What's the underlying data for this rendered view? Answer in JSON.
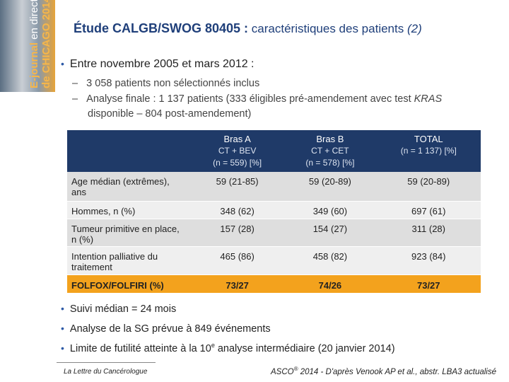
{
  "banner": {
    "lines": [
      "E-journal",
      "en direct",
      "de CHICAGO 2014"
    ]
  },
  "header": {
    "title_main": "Étude CALGB/SWOG 80405 :",
    "title_rest": "caractéristiques des patients",
    "title_end": "(2)"
  },
  "intro": {
    "bullet": "Entre novembre 2005 et mars 2012 :",
    "sub": [
      {
        "parts": [
          "3 058 patients non sélectionnés inclus"
        ]
      },
      {
        "parts": [
          "Analyse finale : 1 137 patients (333 éligibles pré-amendement avec test ",
          "KRAS",
          " disponible – 804 post-amendement)"
        ]
      }
    ]
  },
  "table": {
    "header": [
      [
        "Bras A",
        "CT + BEV",
        "(n = 559) [%]"
      ],
      [
        "Bras B",
        "CT + CET",
        "(n = 578) [%]"
      ],
      [
        "TOTAL",
        "(n = 1 137) [%]"
      ]
    ],
    "rows": [
      [
        "Age médian (extrêmes), ans",
        "59 (21-85)",
        "59 (20-89)",
        "59 (20-89)"
      ],
      [
        "Hommes, n (%)",
        "348 (62)",
        "349 (60)",
        "697 (61)"
      ],
      [
        "Tumeur primitive en place, n (%)",
        "157 (28)",
        "154 (27)",
        "311 (28)"
      ],
      [
        "Intention palliative du traitement",
        "465 (86)",
        "458 (82)",
        "923 (84)"
      ],
      [
        "FOLFOX/FOLFIRI (%)",
        "73/27",
        "74/26",
        "73/27"
      ]
    ]
  },
  "bullets": [
    {
      "parts": [
        "Suivi médian = 24 mois"
      ]
    },
    {
      "parts": [
        "Analyse de la SG prévue à 849 événements"
      ]
    },
    {
      "parts": [
        "Limite de futilité atteinte à la 10",
        "e",
        " analyse intermédiaire (20 janvier 2014)"
      ]
    }
  ],
  "footer": {
    "left": "La Lettre du Cancérologue",
    "right_a": "ASCO",
    "right_sup": "®",
    "right_b": " 2014 - D'après Venook AP et al., abstr. LBA3 actualisé"
  }
}
